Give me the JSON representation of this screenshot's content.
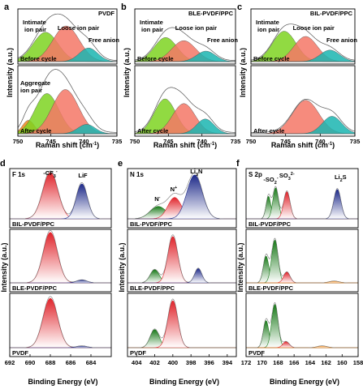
{
  "raman": {
    "x_label": "Raman shift (cm",
    "x_label_sup": "-1",
    "x_label_end": ")",
    "y_label": "Intensity (a.u.)",
    "x_ticks": [
      750,
      745,
      740,
      735
    ],
    "xlim": [
      750,
      735
    ],
    "panels": [
      {
        "letter": "a",
        "title": "PVDF",
        "top": {
          "label": "Before cycle",
          "annotations": [
            "Intimate ion pair",
            "Loose ion pair",
            "Free anion"
          ],
          "peaks": [
            {
              "name": "Intimate ion pair",
              "center": 745.8,
              "width": 1.9,
              "height": 0.56,
              "color": "#7ed321"
            },
            {
              "name": "Loose ion pair",
              "center": 742.7,
              "width": 2.0,
              "height": 0.68,
              "color": "#f47766"
            },
            {
              "name": "Free anion",
              "center": 739.3,
              "width": 1.4,
              "height": 0.26,
              "color": "#1ab5b0"
            }
          ]
        },
        "bottom": {
          "label": "After cycle",
          "annotations": [
            "Aggregate ion pair"
          ],
          "peaks": [
            {
              "name": "Aggregate ion pair",
              "center": 748.4,
              "width": 0.9,
              "height": 0.2,
              "color": "#f08a1c"
            },
            {
              "name": "Intimate ion pair",
              "center": 745.6,
              "width": 1.8,
              "height": 0.6,
              "color": "#7ed321"
            },
            {
              "name": "Loose ion pair",
              "center": 742.8,
              "width": 2.0,
              "height": 0.66,
              "color": "#f47766"
            },
            {
              "name": "Free anion",
              "center": 739.6,
              "width": 1.3,
              "height": 0.14,
              "color": "#1ab5b0"
            }
          ]
        }
      },
      {
        "letter": "b",
        "title": "BLE-PVDF/PPC",
        "top": {
          "label": "Before cycle",
          "annotations": [
            "Intimate ion pair",
            "Loose ion pair",
            "Free anion"
          ],
          "peaks": [
            {
              "name": "Intimate ion pair",
              "center": 745.4,
              "width": 1.7,
              "height": 0.46,
              "color": "#7ed321"
            },
            {
              "name": "Loose ion pair",
              "center": 742.7,
              "width": 1.8,
              "height": 0.4,
              "color": "#f47766"
            },
            {
              "name": "Free anion",
              "center": 739.4,
              "width": 1.4,
              "height": 0.2,
              "color": "#1ab5b0"
            }
          ]
        },
        "bottom": {
          "label": "After cycle",
          "annotations": [],
          "peaks": [
            {
              "name": "Intimate ion pair",
              "center": 745.5,
              "width": 1.6,
              "height": 0.52,
              "color": "#7ed321"
            },
            {
              "name": "Loose ion pair",
              "center": 742.7,
              "width": 1.7,
              "height": 0.45,
              "color": "#f47766"
            },
            {
              "name": "Free anion",
              "center": 739.5,
              "width": 1.3,
              "height": 0.22,
              "color": "#1ab5b0"
            }
          ]
        }
      },
      {
        "letter": "c",
        "title": "BIL-PVDF/PPC",
        "top": {
          "label": "Before cycle",
          "annotations": [
            "Intimate ion pair",
            "Loose ion pair",
            "Free anion"
          ],
          "peaks": [
            {
              "name": "Intimate ion pair",
              "center": 745.2,
              "width": 1.7,
              "height": 0.58,
              "color": "#7ed321"
            },
            {
              "name": "Loose ion pair",
              "center": 742.1,
              "width": 1.7,
              "height": 0.48,
              "color": "#f47766"
            },
            {
              "name": "Free anion",
              "center": 738.6,
              "width": 1.4,
              "height": 0.22,
              "color": "#1ab5b0"
            }
          ]
        },
        "bottom": {
          "label": "After cycle",
          "annotations": [],
          "peaks": [
            {
              "name": "Loose ion pair",
              "center": 742.1,
              "width": 1.9,
              "height": 0.5,
              "color": "#f47766"
            },
            {
              "name": "Free anion",
              "center": 738.3,
              "width": 1.4,
              "height": 0.26,
              "color": "#1ab5b0"
            }
          ]
        }
      }
    ]
  },
  "xps": {
    "x_label": "Binding Energy (eV)",
    "y_label": "Intensity (a.u.)",
    "samples": [
      "BIL-PVDF/PPC",
      "BLE-PVDF/PPC",
      "PVDF"
    ],
    "panels": [
      {
        "letter": "d",
        "title": "F 1s",
        "xlim": [
          692,
          682
        ],
        "x_ticks": [
          692,
          690,
          688,
          686,
          684
        ],
        "annotations": [
          {
            "text": "-CF",
            "sub": "3",
            "suffix": "-",
            "x": 688.0
          },
          {
            "text": "LiF",
            "sub": "",
            "suffix": "",
            "x": 684.8
          }
        ],
        "rows": [
          {
            "sample": "BIL-PVDF/PPC",
            "peaks": [
              {
                "center": 688.0,
                "width": 0.75,
                "height": 0.82,
                "color": "#e0242b",
                "fill": "red"
              },
              {
                "center": 684.9,
                "width": 0.55,
                "height": 0.62,
                "color": "#1e2a8a",
                "fill": "blue"
              }
            ]
          },
          {
            "sample": "BLE-PVDF/PPC",
            "peaks": [
              {
                "center": 688.0,
                "width": 0.7,
                "height": 0.85,
                "color": "#e0242b",
                "fill": "red"
              },
              {
                "center": 684.9,
                "width": 0.5,
                "height": 0.05,
                "color": "#1e2a8a",
                "fill": "blue"
              }
            ]
          },
          {
            "sample": "PVDF",
            "peaks": [
              {
                "center": 688.0,
                "width": 0.72,
                "height": 0.82,
                "color": "#e0242b",
                "fill": "red"
              },
              {
                "center": 684.9,
                "width": 0.5,
                "height": 0.03,
                "color": "#1e2a8a",
                "fill": "blue"
              }
            ]
          }
        ]
      },
      {
        "letter": "e",
        "title": "N 1s",
        "xlim": [
          405,
          393
        ],
        "x_ticks": [
          404,
          402,
          400,
          398,
          396,
          394
        ],
        "annotations": [
          {
            "text": "N",
            "sub": "",
            "suffix": "-",
            "x": 401.7
          },
          {
            "text": "N",
            "sub": "",
            "suffix": "+",
            "x": 399.9
          },
          {
            "text": "Li",
            "sub": "3",
            "suffix": "N",
            "x": 397.4
          }
        ],
        "rows": [
          {
            "sample": "BIL-PVDF/PPC",
            "peaks": [
              {
                "center": 401.6,
                "width": 0.9,
                "height": 0.22,
                "color": "#1a7a1a",
                "fill": "green"
              },
              {
                "center": 399.8,
                "width": 0.75,
                "height": 0.38,
                "color": "#e0242b",
                "fill": "red"
              },
              {
                "center": 397.6,
                "width": 0.85,
                "height": 0.78,
                "color": "#1e2a8a",
                "fill": "blue"
              }
            ]
          },
          {
            "sample": "BLE-PVDF/PPC",
            "peaks": [
              {
                "center": 402.0,
                "width": 0.5,
                "height": 0.22,
                "color": "#1a7a1a",
                "fill": "green"
              },
              {
                "center": 400.0,
                "width": 0.55,
                "height": 0.78,
                "color": "#e0242b",
                "fill": "red"
              },
              {
                "center": 397.2,
                "width": 0.4,
                "height": 0.24,
                "color": "#1e2a8a",
                "fill": "blue"
              }
            ]
          },
          {
            "sample": "PVDF",
            "peaks": [
              {
                "center": 402.0,
                "width": 0.5,
                "height": 0.3,
                "color": "#1a7a1a",
                "fill": "green"
              },
              {
                "center": 400.0,
                "width": 0.55,
                "height": 0.78,
                "color": "#e0242b",
                "fill": "red"
              }
            ]
          }
        ]
      },
      {
        "letter": "f",
        "title": "S 2p",
        "xlim": [
          172,
          158
        ],
        "x_ticks": [
          172,
          170,
          168,
          166,
          164,
          162,
          160,
          158
        ],
        "annotations": [
          {
            "text": "-SO",
            "sub": "2",
            "suffix": "-",
            "x": 168.9
          },
          {
            "text": "SO",
            "sub": "3",
            "suffix": "2-",
            "x": 166.9
          },
          {
            "text": "Li",
            "sub": "2",
            "suffix": "S",
            "x": 160.2
          }
        ],
        "rows": [
          {
            "sample": "BIL-PVDF/PPC",
            "peaks": [
              {
                "center": 169.2,
                "width": 0.3,
                "height": 0.4,
                "color": "#1a7a1a",
                "fill": "green"
              },
              {
                "center": 168.3,
                "width": 0.35,
                "height": 0.55,
                "color": "#1a7a1a",
                "fill": "green"
              },
              {
                "center": 166.9,
                "width": 0.4,
                "height": 0.48,
                "color": "#e0242b",
                "fill": "red"
              },
              {
                "center": 160.6,
                "width": 0.45,
                "height": 0.52,
                "color": "#1e2a8a",
                "fill": "blue"
              }
            ]
          },
          {
            "sample": "BLE-PVDF/PPC",
            "peaks": [
              {
                "center": 169.5,
                "width": 0.35,
                "height": 0.45,
                "color": "#1a7a1a",
                "fill": "green"
              },
              {
                "center": 168.4,
                "width": 0.4,
                "height": 0.72,
                "color": "#1a7a1a",
                "fill": "green"
              },
              {
                "center": 166.9,
                "width": 0.4,
                "height": 0.18,
                "color": "#e0242b",
                "fill": "red"
              },
              {
                "center": 161.0,
                "width": 0.6,
                "height": 0.03,
                "color": "#f08a1c",
                "fill": "orange"
              }
            ]
          },
          {
            "sample": "PVDF",
            "peaks": [
              {
                "center": 169.5,
                "width": 0.35,
                "height": 0.45,
                "color": "#1a7a1a",
                "fill": "green"
              },
              {
                "center": 168.4,
                "width": 0.4,
                "height": 0.72,
                "color": "#1a7a1a",
                "fill": "green"
              },
              {
                "center": 167.0,
                "width": 0.4,
                "height": 0.1,
                "color": "#e0242b",
                "fill": "red"
              },
              {
                "center": 162.5,
                "width": 0.6,
                "height": 0.03,
                "color": "#f08a1c",
                "fill": "orange"
              }
            ]
          }
        ]
      }
    ]
  },
  "chart_data": [
    {
      "type": "area",
      "panel": "a",
      "title": "PVDF",
      "xlabel": "Raman shift (cm-1)",
      "ylabel": "Intensity (a.u.)",
      "xlim": [
        750,
        735
      ],
      "series": [
        {
          "name": "Intimate ion pair"
        },
        {
          "name": "Loose ion pair"
        },
        {
          "name": "Free anion"
        },
        {
          "name": "Aggregate ion pair"
        }
      ]
    },
    {
      "type": "area",
      "panel": "b",
      "title": "BLE-PVDF/PPC",
      "xlabel": "Raman shift (cm-1)",
      "xlim": [
        750,
        735
      ],
      "series": [
        {
          "name": "Intimate ion pair"
        },
        {
          "name": "Loose ion pair"
        },
        {
          "name": "Free anion"
        }
      ]
    },
    {
      "type": "area",
      "panel": "c",
      "title": "BIL-PVDF/PPC",
      "xlabel": "Raman shift (cm-1)",
      "xlim": [
        750,
        735
      ],
      "series": [
        {
          "name": "Intimate ion pair"
        },
        {
          "name": "Loose ion pair"
        },
        {
          "name": "Free anion"
        }
      ]
    },
    {
      "type": "area",
      "panel": "d",
      "title": "F 1s",
      "xlabel": "Binding Energy (eV)",
      "ylabel": "Intensity (a.u.)",
      "xlim": [
        692,
        682
      ]
    },
    {
      "type": "area",
      "panel": "e",
      "title": "N 1s",
      "xlabel": "Binding Energy (eV)",
      "ylabel": "Intensity (a.u.)",
      "xlim": [
        405,
        393
      ]
    },
    {
      "type": "area",
      "panel": "f",
      "title": "S 2p",
      "xlabel": "Binding Energy (eV)",
      "ylabel": "Intensity (a.u.)",
      "xlim": [
        172,
        158
      ]
    }
  ]
}
